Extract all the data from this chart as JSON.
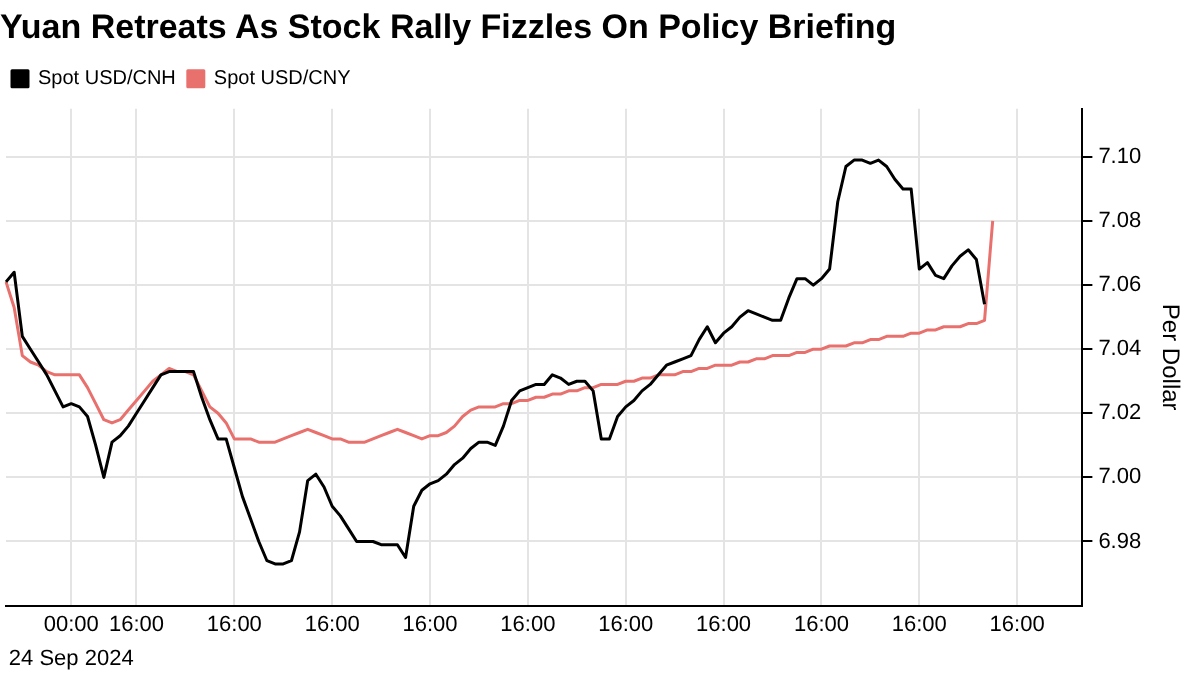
{
  "chart_data": {
    "type": "line",
    "title": "Yuan Retreats As Stock Rally Fizzles On Policy Briefing",
    "ylabel": "Per Dollar",
    "annotations": [
      "24 Sep 2024"
    ],
    "categories": [
      null,
      null,
      null,
      null,
      null,
      null,
      null,
      null,
      "00:00",
      null,
      null,
      null,
      null,
      null,
      null,
      null,
      "16:00",
      null,
      null,
      null,
      null,
      null,
      null,
      null,
      null,
      null,
      null,
      null,
      "16:00",
      null,
      null,
      null,
      null,
      null,
      null,
      null,
      null,
      null,
      null,
      null,
      "16:00",
      null,
      null,
      null,
      null,
      null,
      null,
      null,
      null,
      null,
      null,
      null,
      "16:00",
      null,
      null,
      null,
      null,
      null,
      null,
      null,
      null,
      null,
      null,
      null,
      "16:00",
      null,
      null,
      null,
      null,
      null,
      null,
      null,
      null,
      null,
      null,
      null,
      "16:00",
      null,
      null,
      null,
      null,
      null,
      null,
      null,
      null,
      null,
      null,
      null,
      "16:00",
      null,
      null,
      null,
      null,
      null,
      null,
      null,
      null,
      null,
      null,
      null,
      "16:00",
      null,
      null,
      null,
      null,
      null,
      null,
      null,
      null,
      null,
      null,
      null,
      "16:00",
      null,
      null,
      null,
      null,
      null,
      null,
      null,
      null,
      null,
      null,
      null,
      "16:00",
      null,
      null,
      null,
      null,
      null,
      null,
      null,
      null
    ],
    "ylim": [
      6.96,
      7.115
    ],
    "yticks": [
      {
        "value": 6.98,
        "label": "6.98"
      },
      {
        "value": 7.0,
        "label": "7.00"
      },
      {
        "value": 7.02,
        "label": "7.02"
      },
      {
        "value": 7.04,
        "label": "7.04"
      },
      {
        "value": 7.06,
        "label": "7.06"
      },
      {
        "value": 7.08,
        "label": "7.08"
      },
      {
        "value": 7.1,
        "label": "7.10"
      }
    ],
    "grid": true,
    "legend": "top left",
    "marker": "none",
    "line_style": "solid",
    "series": [
      {
        "name": "Spot USD/CNH",
        "color": "#000000",
        "values": [
          7.061,
          7.064,
          7.044,
          7.04,
          7.036,
          7.032,
          7.027,
          7.022,
          7.023,
          7.022,
          7.019,
          7.01,
          7.0,
          7.011,
          7.013,
          7.016,
          7.02,
          7.024,
          7.028,
          7.032,
          7.033,
          7.033,
          7.033,
          7.033,
          7.025,
          7.018,
          7.012,
          7.012,
          7.003,
          6.994,
          6.987,
          6.98,
          6.974,
          6.973,
          6.973,
          6.974,
          6.983,
          6.999,
          7.001,
          6.997,
          6.991,
          6.988,
          6.984,
          6.98,
          6.98,
          6.98,
          6.979,
          6.979,
          6.979,
          6.975,
          6.991,
          6.996,
          6.998,
          6.999,
          7.001,
          7.004,
          7.006,
          7.009,
          7.011,
          7.011,
          7.01,
          7.016,
          7.024,
          7.027,
          7.028,
          7.029,
          7.029,
          7.032,
          7.031,
          7.029,
          7.03,
          7.03,
          7.027,
          7.012,
          7.012,
          7.019,
          7.022,
          7.024,
          7.027,
          7.029,
          7.032,
          7.035,
          7.036,
          7.037,
          7.038,
          7.043,
          7.047,
          7.042,
          7.045,
          7.047,
          7.05,
          7.052,
          7.051,
          7.05,
          7.049,
          7.049,
          7.056,
          7.062,
          7.062,
          7.06,
          7.062,
          7.065,
          7.086,
          7.097,
          7.099,
          7.099,
          7.098,
          7.099,
          7.097,
          7.093,
          7.09,
          7.09,
          7.065,
          7.067,
          7.063,
          7.062,
          7.066,
          7.069,
          7.071,
          7.068,
          7.054,
          null,
          null,
          null,
          null,
          null,
          null,
          null,
          null,
          null,
          null,
          null,
          null
        ]
      },
      {
        "name": "Spot USD/CNY",
        "color": "#e8706d",
        "values": [
          7.061,
          7.053,
          7.038,
          7.036,
          7.035,
          7.033,
          7.032,
          7.032,
          7.032,
          7.032,
          7.028,
          7.023,
          7.018,
          7.017,
          7.018,
          7.021,
          7.024,
          7.027,
          7.03,
          7.032,
          7.034,
          7.033,
          7.033,
          7.032,
          7.027,
          7.022,
          7.02,
          7.017,
          7.012,
          7.012,
          7.012,
          7.011,
          7.011,
          7.011,
          7.012,
          7.013,
          7.014,
          7.015,
          7.014,
          7.013,
          7.012,
          7.012,
          7.011,
          7.011,
          7.011,
          7.012,
          7.013,
          7.014,
          7.015,
          7.014,
          7.013,
          7.012,
          7.013,
          7.013,
          7.014,
          7.016,
          7.019,
          7.021,
          7.022,
          7.022,
          7.022,
          7.023,
          7.023,
          7.024,
          7.024,
          7.025,
          7.025,
          7.026,
          7.026,
          7.027,
          7.027,
          7.028,
          7.028,
          7.029,
          7.029,
          7.029,
          7.03,
          7.03,
          7.031,
          7.031,
          7.032,
          7.032,
          7.032,
          7.033,
          7.033,
          7.034,
          7.034,
          7.035,
          7.035,
          7.035,
          7.036,
          7.036,
          7.037,
          7.037,
          7.038,
          7.038,
          7.038,
          7.039,
          7.039,
          7.04,
          7.04,
          7.041,
          7.041,
          7.041,
          7.042,
          7.042,
          7.043,
          7.043,
          7.044,
          7.044,
          7.044,
          7.045,
          7.045,
          7.046,
          7.046,
          7.047,
          7.047,
          7.047,
          7.048,
          7.048,
          7.049,
          7.08,
          null,
          null,
          null,
          null,
          null,
          null,
          null,
          null,
          null,
          null,
          null
        ]
      }
    ]
  }
}
